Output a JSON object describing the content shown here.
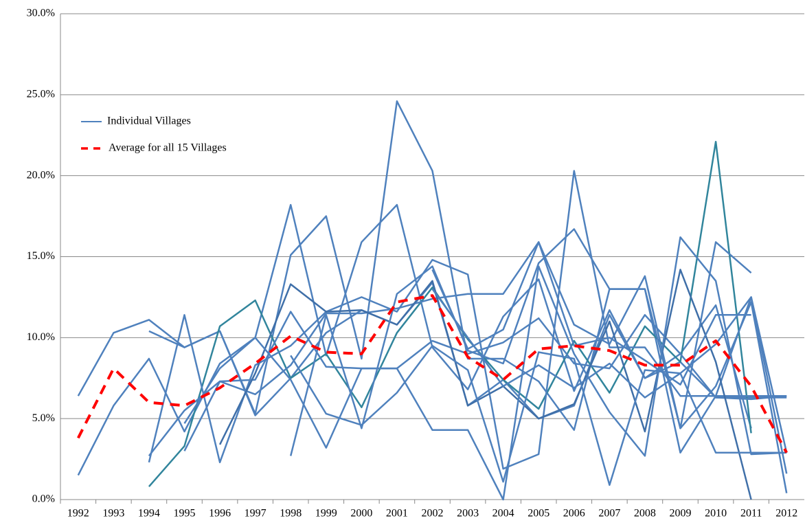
{
  "chart_data": {
    "type": "line",
    "categories": [
      "1992",
      "1993",
      "1994",
      "1995",
      "1996",
      "1997",
      "1998",
      "1999",
      "2000",
      "2001",
      "2002",
      "2003",
      "2004",
      "2005",
      "2006",
      "2007",
      "2008",
      "2009",
      "2010",
      "2011",
      "2012"
    ],
    "ylim": [
      0,
      30
    ],
    "yticks": [
      {
        "value": 0,
        "label": "0.0%"
      },
      {
        "value": 5,
        "label": "5.0%"
      },
      {
        "value": 10,
        "label": "10.0%"
      },
      {
        "value": 15,
        "label": "15.0%"
      },
      {
        "value": 20,
        "label": "20.0%"
      },
      {
        "value": 25,
        "label": "25.0%"
      },
      {
        "value": 30,
        "label": "30.0%"
      }
    ],
    "grid": true,
    "villages": {
      "name": "Individual Villages",
      "color": "#4f81bd",
      "lines": [
        {
          "color": "#4f81bd",
          "values": [
            6.4,
            10.3,
            11.1,
            9.4,
            10.4,
            5.2,
            7.5,
            10.3,
            11.7,
            10.8,
            13.4,
            5.8,
            7.4,
            5.0,
            5.8,
            11.4,
            7.5,
            8.5,
            6.3,
            6.3,
            6.3
          ]
        },
        {
          "color": "#4f81bd",
          "values": [
            1.5,
            5.8,
            8.7,
            4.2,
            8.4,
            10.0,
            18.2,
            8.9,
            15.9,
            18.2,
            9.4,
            6.8,
            11.3,
            13.6,
            6.7,
            11.7,
            7.5,
            9.0,
            12.0,
            4.4,
            null
          ]
        },
        {
          "color": "#4f81bd",
          "values": [
            null,
            null,
            10.4,
            9.4,
            10.4,
            5.3,
            15.1,
            17.5,
            8.7,
            24.6,
            20.3,
            8.7,
            8.7,
            7.3,
            4.3,
            13.0,
            13.0,
            2.9,
            6.4,
            12.5,
            1.6
          ]
        },
        {
          "color": "#31859c",
          "values": [
            null,
            null,
            0.8,
            3.3,
            10.7,
            12.3,
            7.5,
            9.0,
            5.7,
            10.3,
            13.1,
            9.9,
            7.4,
            5.6,
            9.8,
            6.6,
            10.7,
            8.5,
            22.1,
            4.1,
            null
          ]
        },
        {
          "color": "#4f81bd",
          "values": [
            null,
            null,
            2.3,
            11.4,
            2.3,
            8.3,
            9.5,
            11.6,
            12.5,
            11.6,
            14.8,
            13.9,
            1.9,
            2.8,
            20.3,
            9.4,
            9.4,
            6.4,
            6.4,
            6.4,
            6.4
          ]
        },
        {
          "color": "#4f81bd",
          "values": [
            null,
            null,
            2.7,
            5.5,
            7.3,
            7.4,
            11.6,
            8.2,
            8.1,
            8.1,
            9.8,
            9.0,
            9.7,
            11.2,
            8.4,
            8.1,
            11.4,
            9.0,
            6.3,
            6.2,
            6.4
          ]
        },
        {
          "color": "#4f81bd",
          "values": [
            null,
            null,
            null,
            3.0,
            7.3,
            6.5,
            8.3,
            11.5,
            11.5,
            11.8,
            12.4,
            12.7,
            12.7,
            15.9,
            10.8,
            9.6,
            13.8,
            4.4,
            7.0,
            12.2,
            0.4
          ]
        },
        {
          "color": "#3f6fa8",
          "values": [
            null,
            null,
            null,
            null,
            3.4,
            7.8,
            13.3,
            11.6,
            11.7,
            10.8,
            13.5,
            5.8,
            7.0,
            5.0,
            5.9,
            11.0,
            4.2,
            14.2,
            8.5,
            0.0,
            null
          ]
        },
        {
          "color": "#4f81bd",
          "values": [
            null,
            null,
            null,
            null,
            null,
            null,
            2.7,
            11.4,
            4.4,
            12.7,
            14.4,
            9.2,
            8.4,
            14.6,
            16.7,
            13.0,
            13.0,
            4.4,
            15.9,
            14.0,
            null
          ]
        },
        {
          "color": "#4f81bd",
          "values": [
            null,
            null,
            null,
            4.7,
            8.1,
            10.0,
            7.4,
            3.2,
            8.1,
            8.1,
            4.3,
            4.3,
            0.0,
            14.4,
            9.0,
            5.4,
            2.7,
            16.2,
            13.5,
            2.8,
            2.9
          ]
        },
        {
          "color": "#4f81bd",
          "values": [
            null,
            null,
            null,
            null,
            null,
            null,
            8.9,
            5.3,
            4.6,
            6.6,
            9.5,
            8.0,
            1.1,
            9.1,
            8.7,
            0.9,
            8.0,
            7.8,
            2.9,
            2.9,
            2.9
          ]
        },
        {
          "color": "#4f81bd",
          "values": [
            null,
            null,
            null,
            null,
            null,
            null,
            null,
            null,
            null,
            null,
            14.2,
            9.3,
            10.5,
            15.9,
            9.5,
            10.0,
            8.6,
            7.1,
            11.4,
            11.4,
            null
          ]
        },
        {
          "color": "#4f81bd",
          "values": [
            null,
            null,
            null,
            null,
            null,
            null,
            null,
            null,
            null,
            null,
            13.0,
            10.0,
            7.0,
            8.3,
            6.9,
            8.4,
            6.3,
            7.8,
            9.6,
            12.5,
            2.9
          ]
        }
      ]
    },
    "average": {
      "name": "Average for all 15 Villages",
      "color": "#ff0000",
      "values": [
        3.8,
        8.1,
        6.0,
        5.8,
        6.9,
        8.4,
        10.1,
        9.1,
        9.0,
        12.2,
        12.6,
        8.8,
        7.4,
        9.3,
        9.5,
        9.2,
        8.3,
        8.3,
        9.8,
        7.0,
        2.9
      ]
    }
  }
}
